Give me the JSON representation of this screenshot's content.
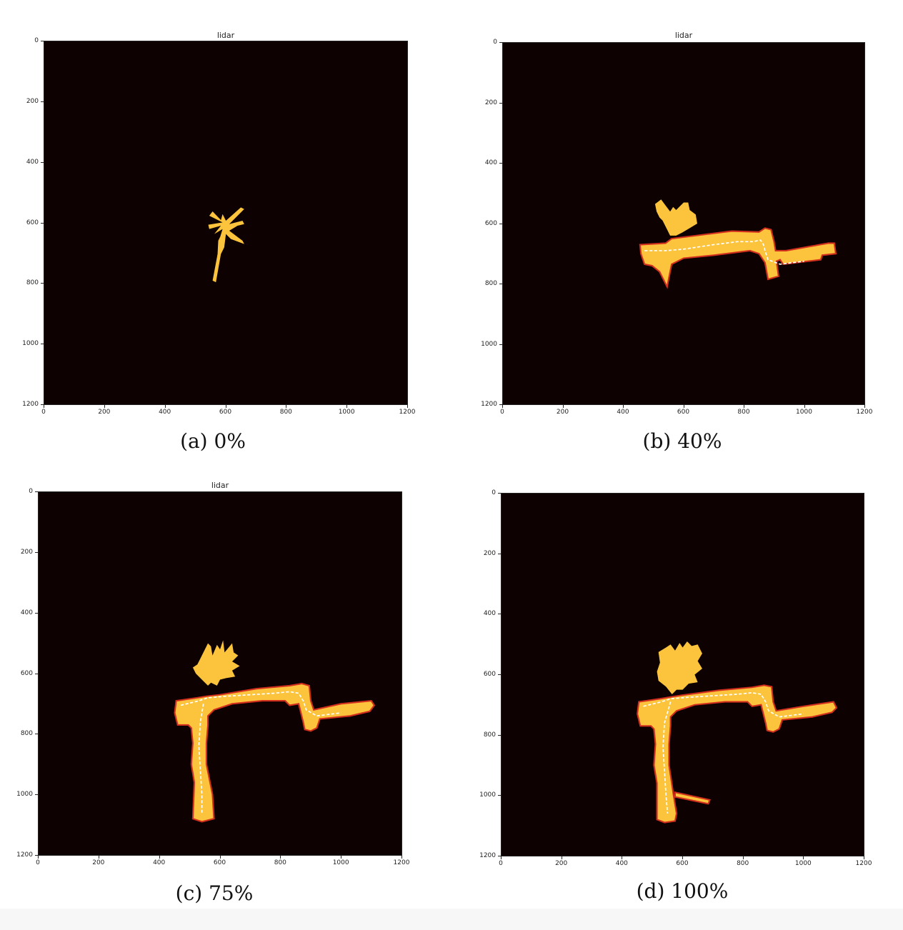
{
  "colors": {
    "background": "#0d0101",
    "free_space": "#fcc43c",
    "obstacle": "#d2301e",
    "trajectory": "#ffffff"
  },
  "panels": [
    {
      "id": "a",
      "plot_title": "lidar",
      "caption": "(a) 0%",
      "y_ticks": [
        "0",
        "200",
        "400",
        "600",
        "800",
        "1000",
        "1200"
      ],
      "x_ticks": [
        "0",
        "200",
        "400",
        "600",
        "800",
        "1000",
        "1200"
      ],
      "xlim": [
        0,
        1200
      ],
      "ylim": [
        1200,
        0
      ]
    },
    {
      "id": "b",
      "plot_title": "lidar",
      "caption": "(b) 40%",
      "y_ticks": [
        "0",
        "200",
        "400",
        "600",
        "800",
        "1000",
        "1200"
      ],
      "x_ticks": [
        "0",
        "200",
        "400",
        "600",
        "800",
        "1000",
        "1200"
      ],
      "xlim": [
        0,
        1200
      ],
      "ylim": [
        1200,
        0
      ]
    },
    {
      "id": "c",
      "plot_title": "lidar",
      "caption": "(c) 75%",
      "y_ticks": [
        "0",
        "200",
        "400",
        "600",
        "800",
        "1000",
        "1200"
      ],
      "x_ticks": [
        "0",
        "200",
        "400",
        "600",
        "800",
        "1000",
        "1200"
      ],
      "xlim": [
        0,
        1200
      ],
      "ylim": [
        1200,
        0
      ]
    },
    {
      "id": "d",
      "plot_title": "",
      "caption": "(d) 100%",
      "y_ticks": [
        "0",
        "200",
        "400",
        "600",
        "800",
        "1000",
        "1200"
      ],
      "x_ticks": [
        "0",
        "200",
        "400",
        "600",
        "800",
        "1000",
        "1200"
      ],
      "xlim": [
        0,
        1200
      ],
      "ylim": [
        1200,
        0
      ]
    }
  ]
}
